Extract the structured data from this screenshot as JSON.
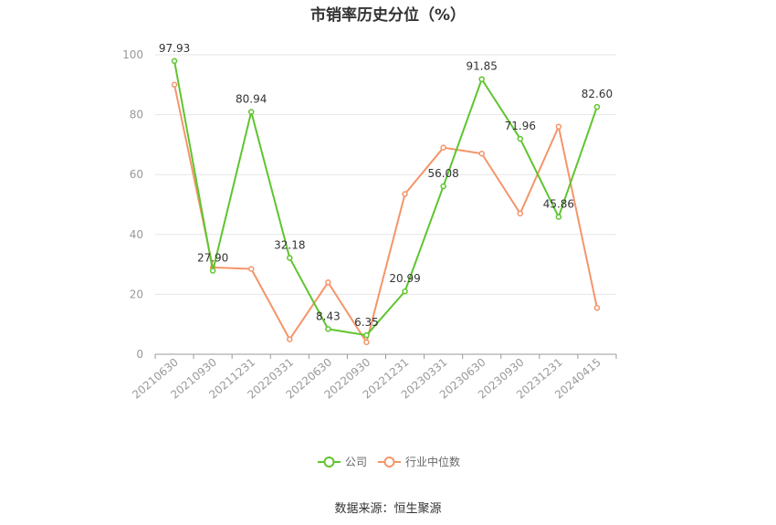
{
  "title": "市销率历史分位（%）",
  "source": "数据来源：恒生聚源",
  "colors": {
    "company": "#5ec52e",
    "industry": "#f4956a",
    "grid": "#e6e6e6",
    "axis": "#999999"
  },
  "chart_data": {
    "type": "line",
    "title": "市销率历史分位（%）",
    "categories": [
      "20210630",
      "20210930",
      "20211231",
      "20220331",
      "20220630",
      "20220930",
      "20221231",
      "20230331",
      "20230630",
      "20230930",
      "20231231",
      "20240415"
    ],
    "ylim": [
      0,
      100
    ],
    "yticks": [
      0,
      20,
      40,
      60,
      80,
      100
    ],
    "grid": true,
    "legend_position": "bottom-center",
    "series": [
      {
        "name": "公司",
        "color": "#5ec52e",
        "values": [
          97.93,
          27.9,
          80.94,
          32.18,
          8.43,
          6.35,
          20.99,
          56.08,
          91.85,
          71.96,
          45.86,
          82.6
        ],
        "labels": [
          "97.93",
          "27.90",
          "80.94",
          "32.18",
          "8.43",
          "6.35",
          "20.99",
          "56.08",
          "91.85",
          "71.96",
          "45.86",
          "82.60"
        ]
      },
      {
        "name": "行业中位数",
        "color": "#f4956a",
        "values": [
          90.0,
          29.0,
          28.5,
          5.0,
          24.0,
          4.0,
          53.5,
          69.0,
          67.0,
          47.0,
          76.0,
          15.5
        ]
      }
    ]
  }
}
